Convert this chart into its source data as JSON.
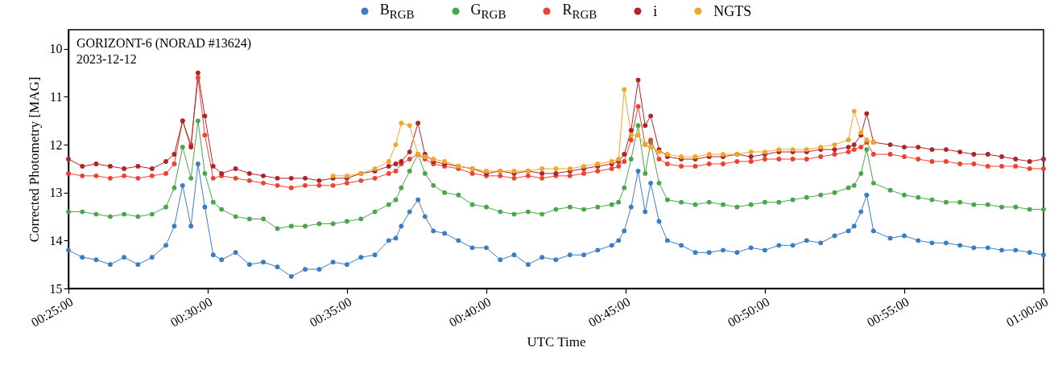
{
  "chart_data": {
    "type": "line",
    "xlabel": "UTC Time",
    "ylabel": "Corrected Photometry [MAG]",
    "annotations": [
      "GORIZONT-6 (NORAD #13624)",
      "2023-12-12"
    ],
    "x": [
      0.4167,
      0.425,
      0.4333,
      0.4417,
      0.45,
      0.4583,
      0.4667,
      0.475,
      0.48,
      0.485,
      0.49,
      0.4942,
      0.4983,
      0.5033,
      0.5083,
      0.5167,
      0.525,
      0.5333,
      0.5417,
      0.55,
      0.5583,
      0.5667,
      0.575,
      0.5833,
      0.5917,
      0.6,
      0.6083,
      0.6125,
      0.6158,
      0.6208,
      0.6258,
      0.63,
      0.635,
      0.6417,
      0.65,
      0.6583,
      0.6667,
      0.675,
      0.6833,
      0.6917,
      0.7,
      0.7083,
      0.7167,
      0.725,
      0.7333,
      0.7417,
      0.7458,
      0.7492,
      0.7533,
      0.7575,
      0.7617,
      0.765,
      0.77,
      0.775,
      0.7833,
      0.7917,
      0.8,
      0.8083,
      0.8167,
      0.825,
      0.8333,
      0.8417,
      0.85,
      0.8583,
      0.8667,
      0.875,
      0.8833,
      0.8867,
      0.8908,
      0.8942,
      0.8983,
      0.9083,
      0.9167,
      0.925,
      0.9333,
      0.9417,
      0.95,
      0.9583,
      0.9667,
      0.975,
      0.9833,
      0.9917,
      1
    ],
    "series": [
      {
        "name": "B$_{RGB}$",
        "color": "#3b7dc4",
        "values": [
          14.2,
          14.35,
          14.4,
          14.5,
          14.35,
          14.5,
          14.35,
          14.1,
          13.7,
          12.85,
          13.7,
          12.4,
          13.3,
          14.3,
          14.4,
          14.25,
          14.5,
          14.45,
          14.55,
          14.75,
          14.6,
          14.6,
          14.45,
          14.5,
          14.35,
          14.3,
          14.0,
          13.95,
          13.7,
          13.4,
          13.15,
          13.5,
          13.8,
          13.85,
          14.0,
          14.15,
          14.15,
          14.4,
          14.3,
          14.5,
          14.35,
          14.4,
          14.3,
          14.3,
          14.2,
          14.1,
          14.0,
          13.8,
          13.3,
          12.55,
          13.4,
          12.8,
          13.6,
          14.0,
          14.1,
          14.25,
          14.25,
          14.2,
          14.25,
          14.15,
          14.2,
          14.1,
          14.1,
          14.0,
          14.05,
          13.9,
          13.8,
          13.7,
          13.4,
          13.05,
          13.8,
          13.95,
          13.9,
          14.0,
          14.05,
          14.05,
          14.1,
          14.15,
          14.15,
          14.2,
          14.2,
          14.25,
          14.3
        ]
      },
      {
        "name": "G$_{RGB}$",
        "color": "#4aa64a",
        "values": [
          13.4,
          13.4,
          13.45,
          13.5,
          13.45,
          13.5,
          13.45,
          13.3,
          12.9,
          12.05,
          12.7,
          11.5,
          12.6,
          13.2,
          13.35,
          13.5,
          13.55,
          13.55,
          13.75,
          13.7,
          13.7,
          13.65,
          13.65,
          13.6,
          13.55,
          13.4,
          13.25,
          13.15,
          12.9,
          12.55,
          12.2,
          12.6,
          12.85,
          13.0,
          13.05,
          13.25,
          13.3,
          13.4,
          13.45,
          13.4,
          13.45,
          13.35,
          13.3,
          13.35,
          13.3,
          13.25,
          13.2,
          12.9,
          12.3,
          11.6,
          12.6,
          11.95,
          12.8,
          13.15,
          13.2,
          13.25,
          13.2,
          13.25,
          13.3,
          13.25,
          13.2,
          13.2,
          13.15,
          13.1,
          13.05,
          13.0,
          12.9,
          12.85,
          12.6,
          12.1,
          12.8,
          12.95,
          13.05,
          13.1,
          13.15,
          13.2,
          13.2,
          13.25,
          13.25,
          13.3,
          13.3,
          13.35,
          13.35
        ]
      },
      {
        "name": "R$_{RGB}$",
        "color": "#f0402f",
        "values": [
          12.6,
          12.65,
          12.65,
          12.7,
          12.65,
          12.7,
          12.65,
          12.6,
          12.4,
          11.5,
          12.0,
          10.6,
          11.8,
          12.7,
          12.65,
          12.7,
          12.75,
          12.8,
          12.85,
          12.9,
          12.85,
          12.85,
          12.85,
          12.8,
          12.75,
          12.7,
          12.6,
          12.55,
          12.4,
          12.3,
          12.2,
          12.3,
          12.4,
          12.45,
          12.5,
          12.6,
          12.65,
          12.65,
          12.7,
          12.65,
          12.7,
          12.65,
          12.65,
          12.6,
          12.55,
          12.5,
          12.45,
          12.35,
          11.9,
          11.2,
          12.0,
          11.9,
          12.3,
          12.4,
          12.45,
          12.45,
          12.4,
          12.4,
          12.35,
          12.35,
          12.3,
          12.3,
          12.3,
          12.3,
          12.25,
          12.2,
          12.15,
          12.1,
          12.05,
          11.95,
          12.2,
          12.2,
          12.25,
          12.3,
          12.35,
          12.35,
          12.4,
          12.4,
          12.45,
          12.45,
          12.45,
          12.5,
          12.5
        ]
      },
      {
        "name": "i",
        "color": "#b02426",
        "values": [
          12.3,
          12.45,
          12.4,
          12.45,
          12.5,
          12.45,
          12.5,
          12.35,
          12.2,
          11.5,
          12.05,
          10.5,
          11.4,
          12.45,
          12.6,
          12.5,
          12.6,
          12.65,
          12.7,
          12.7,
          12.7,
          12.75,
          12.7,
          12.7,
          12.6,
          12.55,
          12.45,
          12.4,
          12.35,
          12.15,
          11.55,
          12.2,
          12.35,
          12.4,
          12.45,
          12.5,
          12.6,
          12.55,
          12.6,
          12.55,
          12.6,
          12.6,
          12.55,
          12.5,
          12.45,
          12.4,
          12.35,
          12.2,
          11.7,
          10.65,
          11.6,
          11.4,
          12.1,
          12.25,
          12.3,
          12.3,
          12.25,
          12.25,
          12.2,
          12.25,
          12.2,
          12.15,
          12.15,
          12.15,
          12.1,
          12.1,
          12.05,
          12.0,
          11.8,
          11.35,
          11.95,
          12.0,
          12.05,
          12.05,
          12.1,
          12.1,
          12.15,
          12.2,
          12.2,
          12.25,
          12.3,
          12.35,
          12.3
        ]
      },
      {
        "name": "NGTS",
        "color": "#f0a628",
        "values": [
          null,
          null,
          null,
          null,
          null,
          null,
          null,
          null,
          null,
          null,
          null,
          null,
          null,
          null,
          null,
          null,
          null,
          null,
          null,
          null,
          null,
          null,
          12.65,
          12.65,
          12.6,
          12.5,
          12.35,
          12.0,
          11.55,
          11.6,
          12.2,
          12.25,
          12.3,
          12.35,
          12.45,
          12.5,
          12.55,
          12.55,
          12.55,
          12.55,
          12.5,
          12.5,
          12.5,
          12.45,
          12.4,
          12.35,
          12.3,
          10.85,
          11.8,
          11.8,
          12.0,
          12.05,
          12.15,
          12.2,
          12.25,
          12.25,
          12.2,
          12.2,
          12.2,
          12.15,
          12.15,
          12.1,
          12.1,
          12.1,
          12.05,
          12.0,
          11.9,
          11.3,
          11.75,
          11.9,
          11.95,
          null,
          null,
          null,
          null,
          null,
          null,
          null,
          null,
          null,
          null,
          null,
          null
        ]
      }
    ],
    "xlim": [
      0.4167,
      1
    ],
    "xticks": [
      {
        "value": 0.4167,
        "label": "00:25:00"
      },
      {
        "value": 0.5,
        "label": "00:30:00"
      },
      {
        "value": 0.5833,
        "label": "00:35:00"
      },
      {
        "value": 0.6667,
        "label": "00:40:00"
      },
      {
        "value": 0.75,
        "label": "00:45:00"
      },
      {
        "value": 0.8333,
        "label": "00:50:00"
      },
      {
        "value": 0.9167,
        "label": "00:55:00"
      },
      {
        "value": 1,
        "label": "01:00:00"
      }
    ],
    "ylim": [
      15,
      9.6
    ],
    "yticks": [
      10,
      11,
      12,
      13,
      14,
      15
    ],
    "grid": false,
    "legend": "top",
    "marker": "circle",
    "line_style": "solid"
  }
}
